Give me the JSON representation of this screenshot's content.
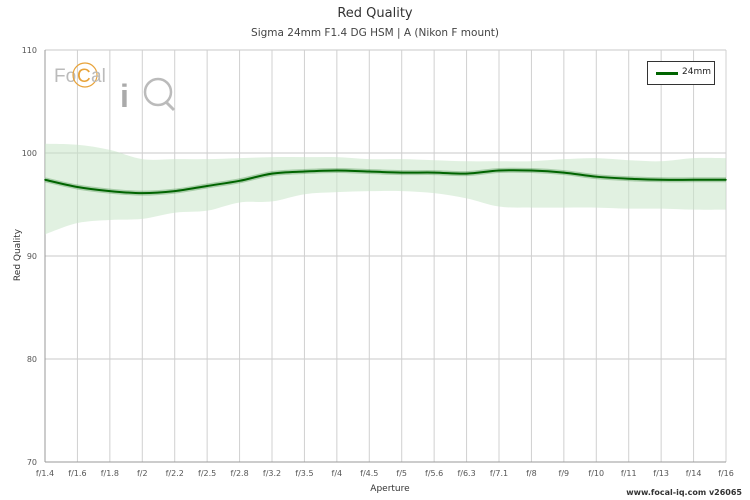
{
  "chart_data": {
    "type": "line",
    "title": "Red Quality",
    "subtitle": "Sigma 24mm F1.4 DG HSM | A (Nikon F mount)",
    "xlabel": "Aperture",
    "ylabel": "Red Quality",
    "categories": [
      "f/1.4",
      "f/1.6",
      "f/1.8",
      "f/2",
      "f/2.2",
      "f/2.5",
      "f/2.8",
      "f/3.2",
      "f/3.5",
      "f/4",
      "f/4.5",
      "f/5",
      "f/5.6",
      "f/6.3",
      "f/7.1",
      "f/8",
      "f/9",
      "f/10",
      "f/11",
      "f/13",
      "f/14",
      "f/16"
    ],
    "ylim": [
      70,
      110
    ],
    "yticks": [
      70,
      80,
      90,
      100,
      110
    ],
    "grid": true,
    "legend_position": "top-right",
    "series": [
      {
        "name": "24mm",
        "color": "#006400",
        "values": [
          97.4,
          96.7,
          96.3,
          96.1,
          96.3,
          96.8,
          97.3,
          98.0,
          98.2,
          98.3,
          98.2,
          98.1,
          98.1,
          98.0,
          98.3,
          98.3,
          98.1,
          97.7,
          97.5,
          97.4,
          97.4,
          97.4
        ],
        "band_upper": [
          100.9,
          100.8,
          100.3,
          99.4,
          99.4,
          99.4,
          99.5,
          99.6,
          99.6,
          99.6,
          99.4,
          99.4,
          99.3,
          99.2,
          99.2,
          99.2,
          99.4,
          99.5,
          99.3,
          99.2,
          99.5,
          99.5
        ],
        "band_lower": [
          92.1,
          93.2,
          93.5,
          93.6,
          94.2,
          94.4,
          95.2,
          95.3,
          96.0,
          96.2,
          96.3,
          96.3,
          96.1,
          95.6,
          94.8,
          94.7,
          94.7,
          94.7,
          94.6,
          94.6,
          94.5,
          94.5
        ],
        "band_color": "#c8e6c8"
      }
    ]
  },
  "logo": {
    "name": "FoCal iQ"
  },
  "footer": {
    "text": "www.focal-iq.com  v26065"
  }
}
